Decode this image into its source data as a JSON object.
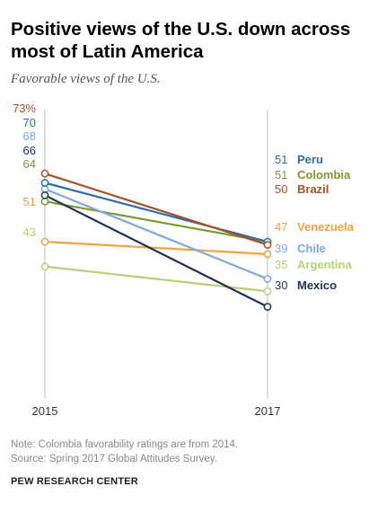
{
  "title": "Positive views of the U.S. down across most of Latin America",
  "subtitle": "Favorable views of the U.S.",
  "note": "Note: Colombia favorability ratings are from 2014.",
  "source": "Source: Spring 2017 Global Attitudes Survey.",
  "brand": "PEW RESEARCH CENTER",
  "chart_data": {
    "type": "line",
    "x": [
      "2015",
      "2017"
    ],
    "ylim": [
      0,
      100
    ],
    "grid": false,
    "legend": "right-end labels",
    "series": [
      {
        "name": "Peru",
        "values": [
          70,
          51
        ],
        "start_label": "70",
        "end_label": "51",
        "color": "#2f6ca7"
      },
      {
        "name": "Colombia",
        "values": [
          64,
          51
        ],
        "start_label": "64",
        "end_label": "51",
        "color": "#7a9a2f"
      },
      {
        "name": "Brazil",
        "values": [
          73,
          50
        ],
        "start_label": "73%",
        "end_label": "50",
        "color": "#a3522b"
      },
      {
        "name": "Venezuela",
        "values": [
          51,
          47
        ],
        "start_label": "51",
        "end_label": "47",
        "color": "#f0a040"
      },
      {
        "name": "Chile",
        "values": [
          68,
          39
        ],
        "start_label": "68",
        "end_label": "39",
        "color": "#7fa8da"
      },
      {
        "name": "Argentina",
        "values": [
          43,
          35
        ],
        "start_label": "43",
        "end_label": "35",
        "color": "#b8d078"
      },
      {
        "name": "Mexico",
        "values": [
          66,
          30
        ],
        "start_label": "66",
        "end_label": "30",
        "color": "#1e3552"
      }
    ]
  }
}
